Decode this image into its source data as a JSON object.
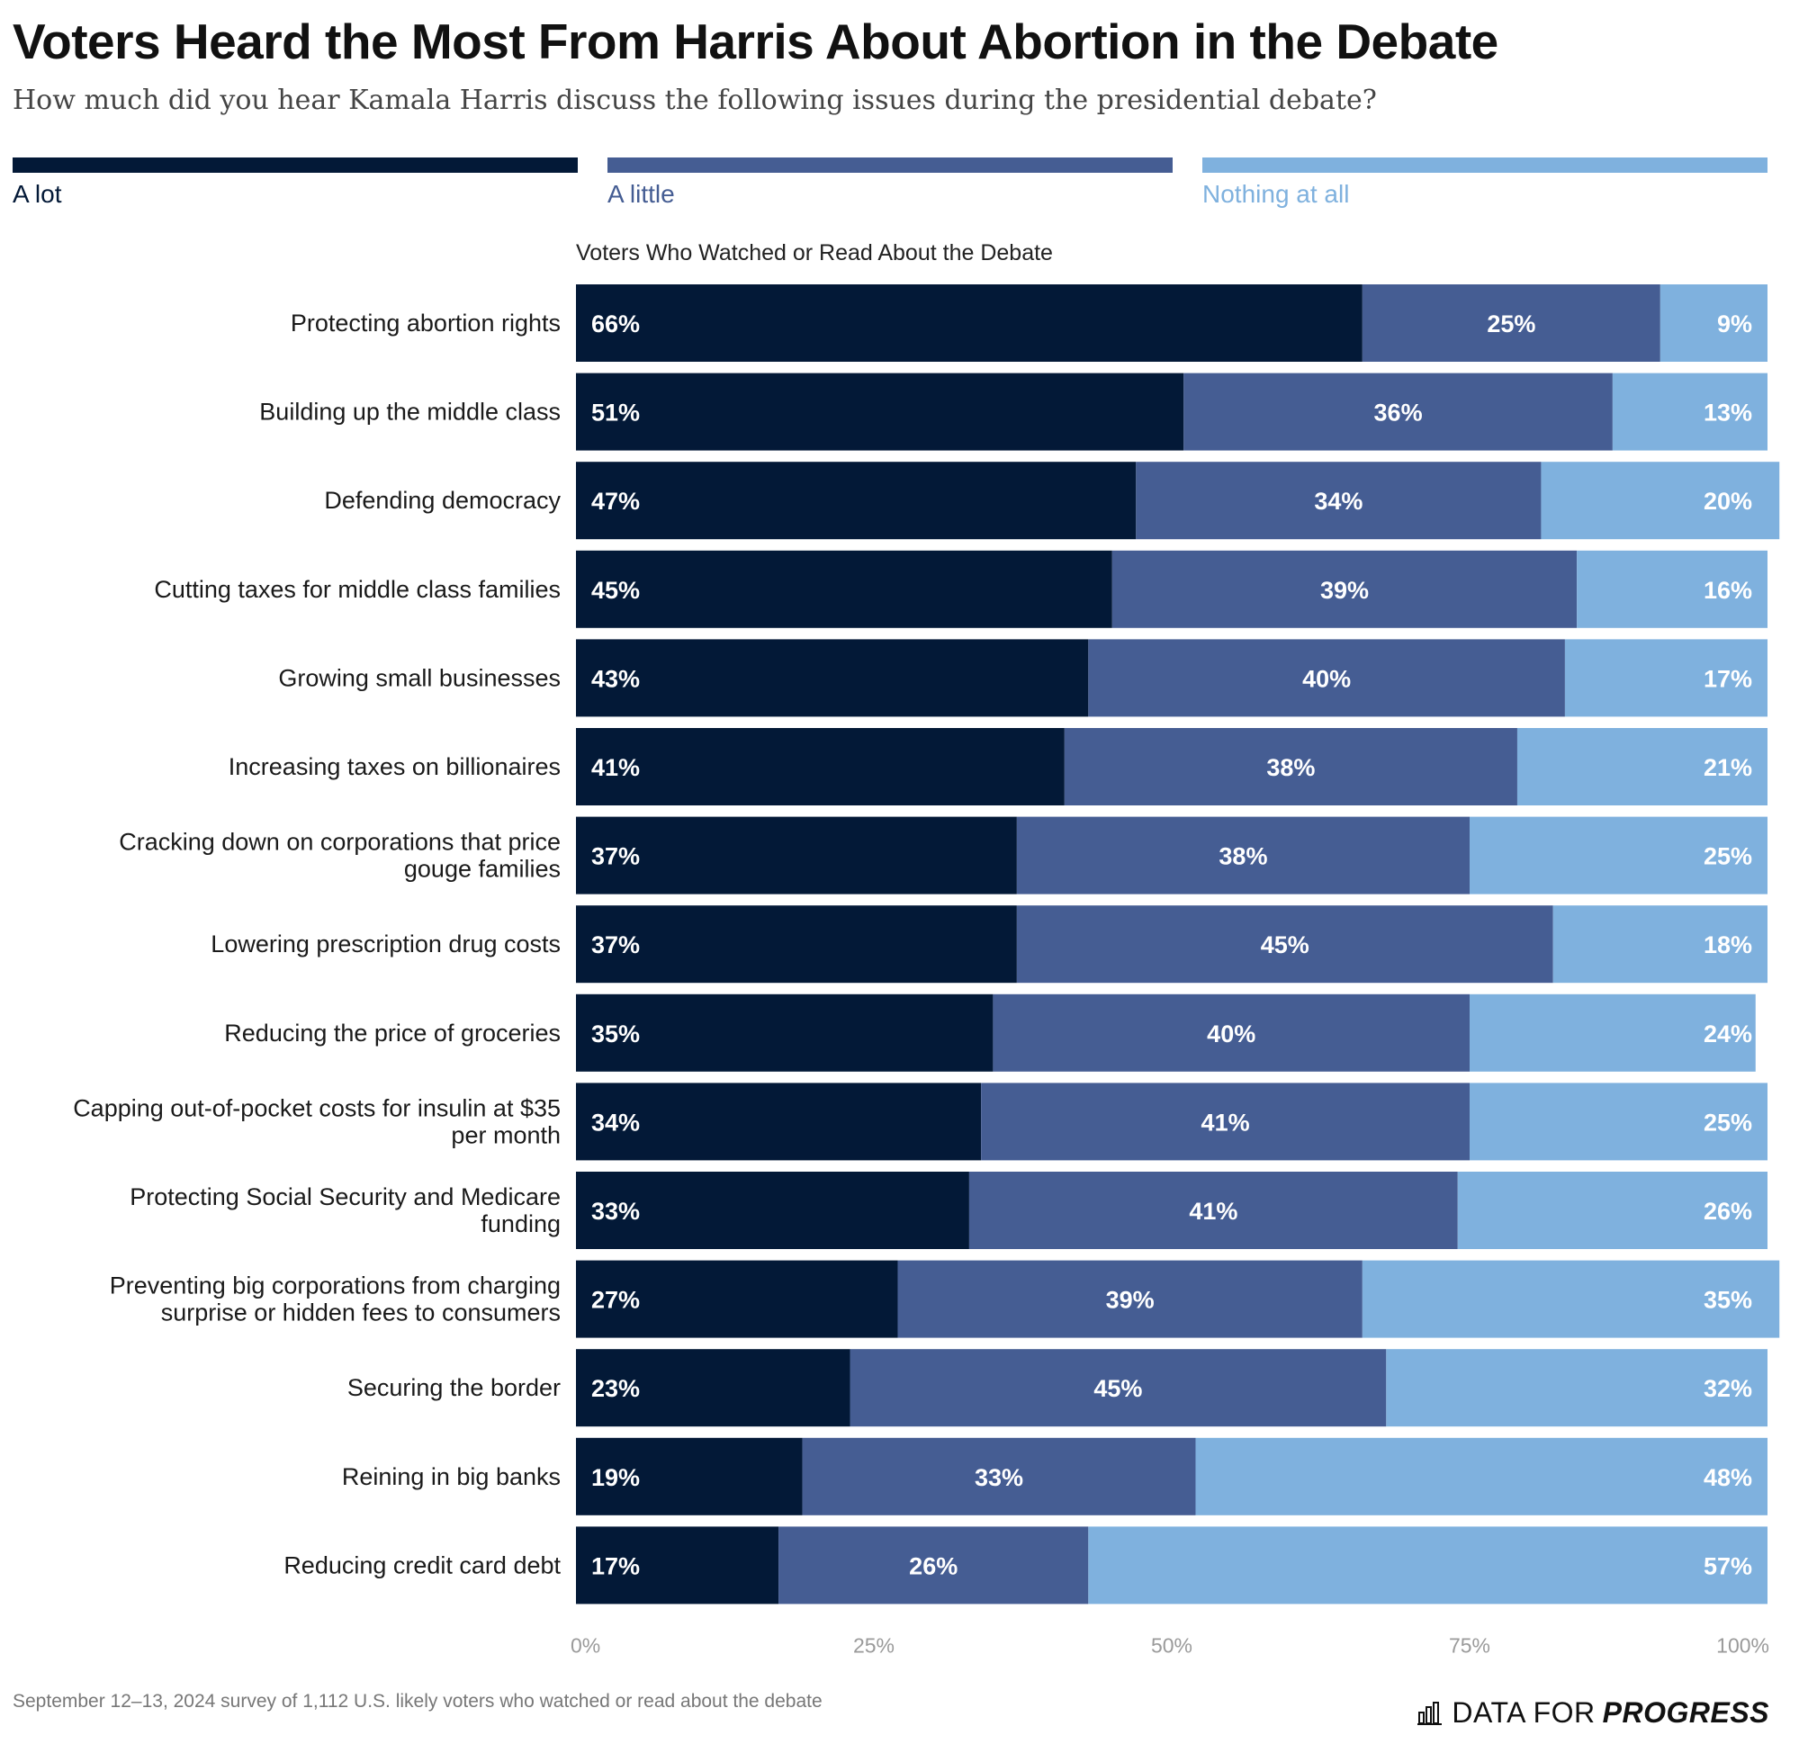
{
  "title": "Voters Heard the Most From Harris About Abortion in the Debate",
  "subtitle": "How much did you hear Kamala Harris discuss the following issues during the presidential debate?",
  "legend": [
    {
      "label": "A lot",
      "color": "#031937"
    },
    {
      "label": "A little",
      "color": "#455d93"
    },
    {
      "label": "Nothing at all",
      "color": "#7fb1de"
    }
  ],
  "section_label": "Voters Who Watched or Read About the Debate",
  "chart_data": {
    "type": "bar",
    "orientation": "horizontal",
    "stacked": true,
    "normalized_percent": true,
    "categories": [
      "Protecting abortion rights",
      "Building up the middle class",
      "Defending democracy",
      "Cutting taxes for middle class families",
      "Growing small businesses",
      "Increasing taxes on billionaires",
      "Cracking down on corporations that price gouge families",
      "Lowering prescription drug costs",
      "Reducing the price of groceries",
      "Capping out-of-pocket costs for insulin at $35 per month",
      "Protecting Social Security and Medicare funding",
      "Preventing big corporations from charging surprise or hidden fees to consumers",
      "Securing the border",
      "Reining in big banks",
      "Reducing credit card debt"
    ],
    "category_lines": [
      [
        "Protecting abortion rights"
      ],
      [
        "Building up the middle class"
      ],
      [
        "Defending democracy"
      ],
      [
        "Cutting taxes for middle class families"
      ],
      [
        "Growing small businesses"
      ],
      [
        "Increasing taxes on billionaires"
      ],
      [
        "Cracking down on corporations that price",
        "gouge families"
      ],
      [
        "Lowering prescription drug costs"
      ],
      [
        "Reducing the price of groceries"
      ],
      [
        "Capping out-of-pocket costs for insulin at $35",
        "per month"
      ],
      [
        "Protecting Social Security and Medicare",
        "funding"
      ],
      [
        "Preventing big corporations from charging",
        "surprise or hidden fees to consumers"
      ],
      [
        "Securing the border"
      ],
      [
        "Reining in big banks"
      ],
      [
        "Reducing credit card debt"
      ]
    ],
    "series": [
      {
        "name": "A lot",
        "color": "#031937",
        "values": [
          66,
          51,
          47,
          45,
          43,
          41,
          37,
          37,
          35,
          34,
          33,
          27,
          23,
          19,
          17
        ]
      },
      {
        "name": "A little",
        "color": "#455d93",
        "values": [
          25,
          36,
          34,
          39,
          40,
          38,
          38,
          45,
          40,
          41,
          41,
          39,
          45,
          33,
          26
        ]
      },
      {
        "name": "Nothing at all",
        "color": "#7fb1de",
        "values": [
          9,
          13,
          20,
          16,
          17,
          21,
          25,
          18,
          24,
          25,
          26,
          35,
          32,
          48,
          57
        ]
      }
    ],
    "value_suffix": "%",
    "xlim": [
      0,
      100
    ],
    "x_ticks": [
      "0%",
      "25%",
      "50%",
      "75%",
      "100%"
    ],
    "grid": false,
    "legend_position": "top"
  },
  "footnote": "September 12–13, 2024 survey of 1,112 U.S. likely voters who watched or read about the debate",
  "brand": {
    "part1": "DATA FOR",
    "part2": "PROGRESS",
    "icon": "bar-chart-icon"
  }
}
